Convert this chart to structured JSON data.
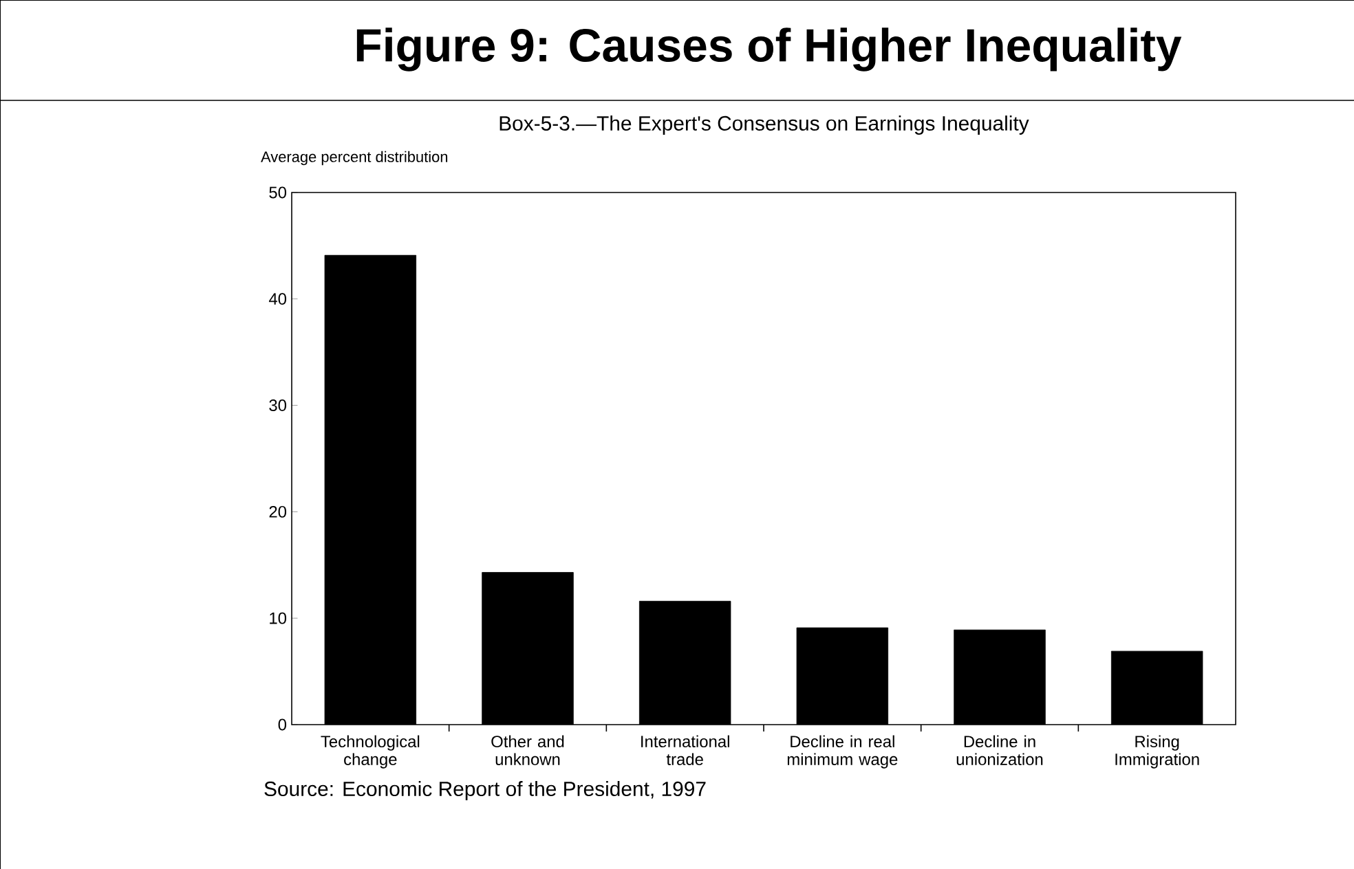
{
  "chart_data": {
    "type": "bar",
    "title": "Figure 9: Causes of Higher Inequality",
    "subtitle": "Box-5-3.—The Expert's Consensus on Earnings Inequality",
    "ylabel": "Average percent distribution",
    "categories": [
      "Technological change",
      "Other and unknown",
      "International trade",
      "Decline in real minimum wage",
      "Decline in unionization",
      "Rising Immigration"
    ],
    "values": [
      44.1,
      14.3,
      11.6,
      9.1,
      8.9,
      6.9
    ],
    "color": "#000000",
    "ylim": [
      0,
      50
    ],
    "yticks": [
      0,
      10,
      20,
      30,
      40,
      50
    ],
    "annotations": [
      "Source: Economic Report of the President, 1997"
    ]
  }
}
